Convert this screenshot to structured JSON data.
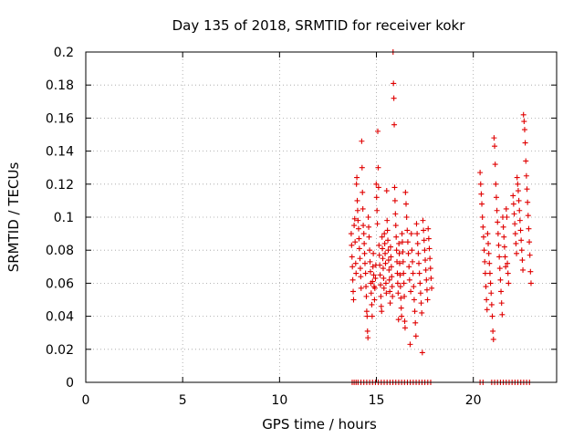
{
  "chart_data": {
    "type": "scatter",
    "title": "Day 135 of 2018, SRMTID for receiver kokr",
    "xlabel": "GPS time / hours",
    "ylabel": "SRMTID / TECUs",
    "xlim": [
      0,
      24.3
    ],
    "ylim": [
      0,
      0.2
    ],
    "xticks": [
      "0",
      "5",
      "10",
      "15",
      "20"
    ],
    "xtick_values": [
      0,
      5,
      10,
      15,
      20
    ],
    "yticks": [
      "0",
      "0.02",
      "0.04",
      "0.06",
      "0.08",
      "0.1",
      "0.12",
      "0.14",
      "0.16",
      "0.18",
      "0.2"
    ],
    "ytick_values": [
      0,
      0.02,
      0.04,
      0.06,
      0.08,
      0.1,
      0.12,
      0.14,
      0.16,
      0.18,
      0.2
    ],
    "grid": true,
    "marker": "+",
    "color": "#e00000",
    "series": [
      {
        "points": [
          [
            13.7,
            0.09
          ],
          [
            13.72,
            0.083
          ],
          [
            13.74,
            0.076
          ],
          [
            13.76,
            0.07
          ],
          [
            13.78,
            0.062
          ],
          [
            13.8,
            0.055
          ],
          [
            13.82,
            0.05
          ],
          [
            13.85,
            0.095
          ],
          [
            13.88,
            0.099
          ],
          [
            13.9,
            0.085
          ],
          [
            13.93,
            0.072
          ],
          [
            13.95,
            0.066
          ],
          [
            13.97,
            0.12
          ],
          [
            13.99,
            0.124
          ],
          [
            14.01,
            0.11
          ],
          [
            14.03,
            0.104
          ],
          [
            14.05,
            0.098
          ],
          [
            14.08,
            0.093
          ],
          [
            14.1,
            0.087
          ],
          [
            14.12,
            0.081
          ],
          [
            14.15,
            0.075
          ],
          [
            14.17,
            0.069
          ],
          [
            14.19,
            0.064
          ],
          [
            14.21,
            0.057
          ],
          [
            14.24,
            0.146
          ],
          [
            14.26,
            0.13
          ],
          [
            14.28,
            0.115
          ],
          [
            14.3,
            0.105
          ],
          [
            14.32,
            0.095
          ],
          [
            14.35,
            0.09
          ],
          [
            14.37,
            0.084
          ],
          [
            14.39,
            0.078
          ],
          [
            14.41,
            0.072
          ],
          [
            14.44,
            0.066
          ],
          [
            14.46,
            0.058
          ],
          [
            14.48,
            0.052
          ],
          [
            14.5,
            0.043
          ],
          [
            14.52,
            0.04
          ],
          [
            14.54,
            0.031
          ],
          [
            14.56,
            0.027
          ],
          [
            14.58,
            0.1
          ],
          [
            14.6,
            0.094
          ],
          [
            14.62,
            0.088
          ],
          [
            14.65,
            0.08
          ],
          [
            14.67,
            0.073
          ],
          [
            14.69,
            0.067
          ],
          [
            14.71,
            0.06
          ],
          [
            14.73,
            0.054
          ],
          [
            14.76,
            0.047
          ],
          [
            14.78,
            0.04
          ],
          [
            14.8,
            0.061
          ],
          [
            14.82,
            0.07
          ],
          [
            14.84,
            0.078
          ],
          [
            14.86,
            0.065
          ],
          [
            14.88,
            0.058
          ],
          [
            14.9,
            0.05
          ],
          [
            14.92,
            0.057
          ],
          [
            14.95,
            0.063
          ],
          [
            14.97,
            0.071
          ],
          [
            14.99,
            0.12
          ],
          [
            15.01,
            0.112
          ],
          [
            15.03,
            0.104
          ],
          [
            15.05,
            0.096
          ],
          [
            15.07,
            0.152
          ],
          [
            15.09,
            0.13
          ],
          [
            15.11,
            0.118
          ],
          [
            15.13,
            0.083
          ],
          [
            15.15,
            0.077
          ],
          [
            15.17,
            0.071
          ],
          [
            15.19,
            0.065
          ],
          [
            15.21,
            0.059
          ],
          [
            15.23,
            0.052
          ],
          [
            15.25,
            0.046
          ],
          [
            15.27,
            0.043
          ],
          [
            15.29,
            0.088
          ],
          [
            15.31,
            0.081
          ],
          [
            15.33,
            0.075
          ],
          [
            15.35,
            0.069
          ],
          [
            15.37,
            0.063
          ],
          [
            15.39,
            0.057
          ],
          [
            15.41,
            0.09
          ],
          [
            15.43,
            0.084
          ],
          [
            15.45,
            0.078
          ],
          [
            15.47,
            0.072
          ],
          [
            15.49,
            0.06
          ],
          [
            15.51,
            0.054
          ],
          [
            15.53,
            0.116
          ],
          [
            15.55,
            0.098
          ],
          [
            15.57,
            0.092
          ],
          [
            15.59,
            0.086
          ],
          [
            15.61,
            0.08
          ],
          [
            15.63,
            0.074
          ],
          [
            15.65,
            0.068
          ],
          [
            15.67,
            0.062
          ],
          [
            15.69,
            0.055
          ],
          [
            15.71,
            0.048
          ],
          [
            15.73,
            0.082
          ],
          [
            15.75,
            0.076
          ],
          [
            15.77,
            0.07
          ],
          [
            15.79,
            0.064
          ],
          [
            15.81,
            0.058
          ],
          [
            15.83,
            0.052
          ],
          [
            15.86,
            0.2
          ],
          [
            15.88,
            0.181
          ],
          [
            15.9,
            0.172
          ],
          [
            15.92,
            0.156
          ],
          [
            15.94,
            0.118
          ],
          [
            15.96,
            0.11
          ],
          [
            15.98,
            0.102
          ],
          [
            16.0,
            0.095
          ],
          [
            16.02,
            0.088
          ],
          [
            16.04,
            0.08
          ],
          [
            16.06,
            0.073
          ],
          [
            16.08,
            0.066
          ],
          [
            16.1,
            0.06
          ],
          [
            16.12,
            0.054
          ],
          [
            16.14,
            0.038
          ],
          [
            16.16,
            0.084
          ],
          [
            16.18,
            0.078
          ],
          [
            16.2,
            0.072
          ],
          [
            16.22,
            0.065
          ],
          [
            16.24,
            0.058
          ],
          [
            16.26,
            0.051
          ],
          [
            16.28,
            0.045
          ],
          [
            16.3,
            0.04
          ],
          [
            16.32,
            0.09
          ],
          [
            16.34,
            0.085
          ],
          [
            16.36,
            0.079
          ],
          [
            16.38,
            0.073
          ],
          [
            16.4,
            0.066
          ],
          [
            16.42,
            0.06
          ],
          [
            16.44,
            0.052
          ],
          [
            16.46,
            0.037
          ],
          [
            16.48,
            0.033
          ],
          [
            16.5,
            0.115
          ],
          [
            16.53,
            0.108
          ],
          [
            16.56,
            0.1
          ],
          [
            16.59,
            0.092
          ],
          [
            16.62,
            0.085
          ],
          [
            16.65,
            0.078
          ],
          [
            16.68,
            0.07
          ],
          [
            16.71,
            0.062
          ],
          [
            16.74,
            0.023
          ],
          [
            16.77,
            0.055
          ],
          [
            16.8,
            0.09
          ],
          [
            16.83,
            0.08
          ],
          [
            16.86,
            0.073
          ],
          [
            16.89,
            0.066
          ],
          [
            16.92,
            0.058
          ],
          [
            16.95,
            0.05
          ],
          [
            16.98,
            0.043
          ],
          [
            17.01,
            0.036
          ],
          [
            17.04,
            0.028
          ],
          [
            17.07,
            0.096
          ],
          [
            17.1,
            0.09
          ],
          [
            17.13,
            0.084
          ],
          [
            17.16,
            0.078
          ],
          [
            17.19,
            0.072
          ],
          [
            17.22,
            0.066
          ],
          [
            17.25,
            0.06
          ],
          [
            17.28,
            0.054
          ],
          [
            17.31,
            0.048
          ],
          [
            17.34,
            0.042
          ],
          [
            17.37,
            0.018
          ],
          [
            17.4,
            0.098
          ],
          [
            17.43,
            0.092
          ],
          [
            17.46,
            0.086
          ],
          [
            17.49,
            0.08
          ],
          [
            17.52,
            0.074
          ],
          [
            17.55,
            0.068
          ],
          [
            17.58,
            0.062
          ],
          [
            17.61,
            0.056
          ],
          [
            17.64,
            0.05
          ],
          [
            17.67,
            0.093
          ],
          [
            17.7,
            0.087
          ],
          [
            17.73,
            0.081
          ],
          [
            17.76,
            0.075
          ],
          [
            17.79,
            0.069
          ],
          [
            17.82,
            0.063
          ],
          [
            17.85,
            0.057
          ],
          [
            20.35,
            0.127
          ],
          [
            20.38,
            0.12
          ],
          [
            20.41,
            0.114
          ],
          [
            20.44,
            0.108
          ],
          [
            20.47,
            0.1
          ],
          [
            20.5,
            0.094
          ],
          [
            20.53,
            0.088
          ],
          [
            20.56,
            0.08
          ],
          [
            20.59,
            0.073
          ],
          [
            20.62,
            0.066
          ],
          [
            20.65,
            0.058
          ],
          [
            20.68,
            0.05
          ],
          [
            20.71,
            0.044
          ],
          [
            20.74,
            0.09
          ],
          [
            20.77,
            0.084
          ],
          [
            20.8,
            0.078
          ],
          [
            20.83,
            0.072
          ],
          [
            20.86,
            0.066
          ],
          [
            20.89,
            0.06
          ],
          [
            20.92,
            0.054
          ],
          [
            20.95,
            0.047
          ],
          [
            20.98,
            0.04
          ],
          [
            21.01,
            0.031
          ],
          [
            21.04,
            0.026
          ],
          [
            21.07,
            0.148
          ],
          [
            21.1,
            0.143
          ],
          [
            21.13,
            0.132
          ],
          [
            21.16,
            0.12
          ],
          [
            21.19,
            0.112
          ],
          [
            21.22,
            0.104
          ],
          [
            21.25,
            0.097
          ],
          [
            21.28,
            0.09
          ],
          [
            21.31,
            0.083
          ],
          [
            21.34,
            0.076
          ],
          [
            21.37,
            0.069
          ],
          [
            21.4,
            0.062
          ],
          [
            21.43,
            0.055
          ],
          [
            21.46,
            0.048
          ],
          [
            21.49,
            0.041
          ],
          [
            21.52,
            0.1
          ],
          [
            21.55,
            0.094
          ],
          [
            21.58,
            0.088
          ],
          [
            21.61,
            0.082
          ],
          [
            21.64,
            0.076
          ],
          [
            21.67,
            0.07
          ],
          [
            21.7,
            0.105
          ],
          [
            21.73,
            0.1
          ],
          [
            21.76,
            0.072
          ],
          [
            21.79,
            0.066
          ],
          [
            21.82,
            0.06
          ],
          [
            22.05,
            0.113
          ],
          [
            22.08,
            0.108
          ],
          [
            22.11,
            0.102
          ],
          [
            22.14,
            0.096
          ],
          [
            22.17,
            0.09
          ],
          [
            22.2,
            0.084
          ],
          [
            22.23,
            0.078
          ],
          [
            22.26,
            0.124
          ],
          [
            22.29,
            0.12
          ],
          [
            22.32,
            0.116
          ],
          [
            22.35,
            0.11
          ],
          [
            22.38,
            0.104
          ],
          [
            22.41,
            0.098
          ],
          [
            22.44,
            0.092
          ],
          [
            22.47,
            0.086
          ],
          [
            22.5,
            0.08
          ],
          [
            22.53,
            0.074
          ],
          [
            22.56,
            0.068
          ],
          [
            22.59,
            0.162
          ],
          [
            22.62,
            0.158
          ],
          [
            22.65,
            0.153
          ],
          [
            22.68,
            0.145
          ],
          [
            22.71,
            0.134
          ],
          [
            22.74,
            0.125
          ],
          [
            22.77,
            0.117
          ],
          [
            22.8,
            0.109
          ],
          [
            22.83,
            0.101
          ],
          [
            22.86,
            0.093
          ],
          [
            22.89,
            0.085
          ],
          [
            22.92,
            0.077
          ],
          [
            22.95,
            0.067
          ],
          [
            22.98,
            0.06
          ],
          [
            13.75,
            0
          ],
          [
            13.85,
            0
          ],
          [
            13.95,
            0
          ],
          [
            14.05,
            0
          ],
          [
            14.2,
            0
          ],
          [
            14.35,
            0
          ],
          [
            14.5,
            0
          ],
          [
            14.65,
            0
          ],
          [
            14.8,
            0
          ],
          [
            14.95,
            0
          ],
          [
            15.1,
            0
          ],
          [
            15.25,
            0
          ],
          [
            15.4,
            0
          ],
          [
            15.55,
            0
          ],
          [
            15.7,
            0
          ],
          [
            15.85,
            0
          ],
          [
            16.0,
            0
          ],
          [
            16.15,
            0
          ],
          [
            16.3,
            0
          ],
          [
            16.45,
            0
          ],
          [
            16.6,
            0
          ],
          [
            16.75,
            0
          ],
          [
            16.9,
            0
          ],
          [
            17.05,
            0
          ],
          [
            17.2,
            0
          ],
          [
            17.35,
            0
          ],
          [
            17.5,
            0
          ],
          [
            17.65,
            0
          ],
          [
            17.8,
            0
          ],
          [
            20.35,
            0
          ],
          [
            20.5,
            0
          ],
          [
            20.95,
            0
          ],
          [
            21.1,
            0
          ],
          [
            21.25,
            0
          ],
          [
            21.4,
            0
          ],
          [
            21.55,
            0
          ],
          [
            21.7,
            0
          ],
          [
            21.85,
            0
          ],
          [
            22.0,
            0
          ],
          [
            22.15,
            0
          ],
          [
            22.3,
            0
          ],
          [
            22.45,
            0
          ],
          [
            22.6,
            0
          ],
          [
            22.75,
            0
          ],
          [
            22.9,
            0
          ]
        ]
      }
    ]
  }
}
